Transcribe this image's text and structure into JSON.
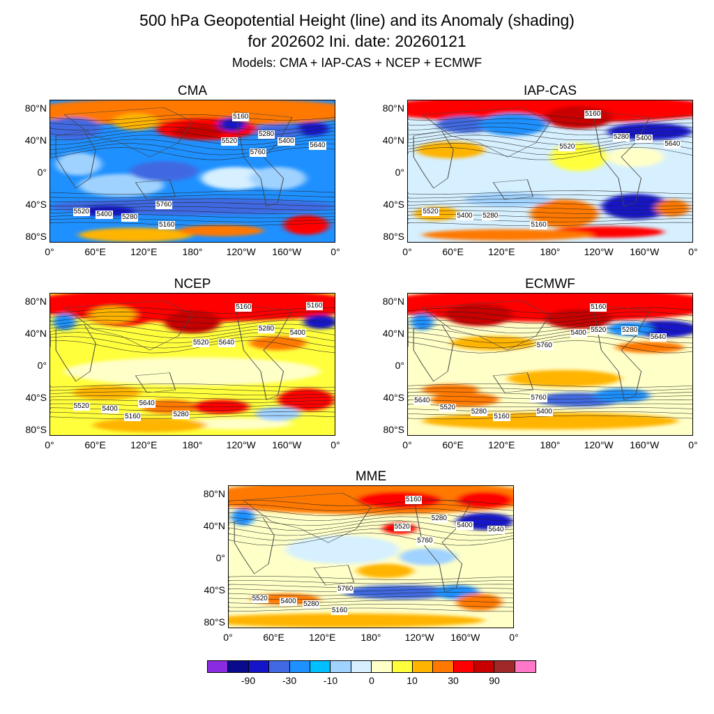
{
  "header": {
    "title_line1": "500 hPa Geopotential Height (line) and its Anomaly (shading)",
    "title_line2": "for 202602 Ini. date: 20260121",
    "subtitle": "Models: CMA + IAP-CAS + NCEP + ECMWF"
  },
  "axes": {
    "y_ticks": [
      "80°N",
      "40°N",
      "0°",
      "40°S",
      "80°S"
    ],
    "x_ticks": [
      "0°",
      "60°E",
      "120°E",
      "180°",
      "120°W",
      "160°W",
      "0°"
    ]
  },
  "panels": [
    {
      "id": "cma",
      "title": "CMA",
      "contour_labels": [
        "5160",
        "5280",
        "5520",
        "5400",
        "5640",
        "5760",
        "5520",
        "5400",
        "5280",
        "5760",
        "5160"
      ]
    },
    {
      "id": "iap",
      "title": "IAP-CAS",
      "contour_labels": [
        "5160",
        "5280",
        "5400",
        "5520",
        "5640",
        "5520",
        "5400",
        "5280",
        "5160"
      ]
    },
    {
      "id": "ncep",
      "title": "NCEP",
      "contour_labels": [
        "5160",
        "5160",
        "5280",
        "5400",
        "5520",
        "5640",
        "5640",
        "5520",
        "5400",
        "5160",
        "5280"
      ]
    },
    {
      "id": "ecmwf",
      "title": "ECMWF",
      "contour_labels": [
        "5160",
        "5520",
        "5280",
        "5400",
        "5760",
        "5640",
        "5640",
        "5520",
        "5280",
        "5160",
        "5760",
        "5400"
      ]
    },
    {
      "id": "mme",
      "title": "MME",
      "contour_labels": [
        "5160",
        "5280",
        "5400",
        "5640",
        "5520",
        "5760",
        "5760",
        "5520",
        "5400",
        "5280",
        "5160"
      ]
    }
  ],
  "colorbar": {
    "colors": [
      "#8a2be2",
      "#0a0a8c",
      "#1414c8",
      "#4169e1",
      "#1e90ff",
      "#00bfff",
      "#a0d2ff",
      "#d6f0ff",
      "#ffffc8",
      "#ffff3c",
      "#ffb400",
      "#ff7800",
      "#ff0000",
      "#c80000",
      "#a02828",
      "#ff78c8"
    ],
    "labels": [
      "-90",
      "-30",
      "-10",
      "0",
      "10",
      "30",
      "90"
    ]
  }
}
